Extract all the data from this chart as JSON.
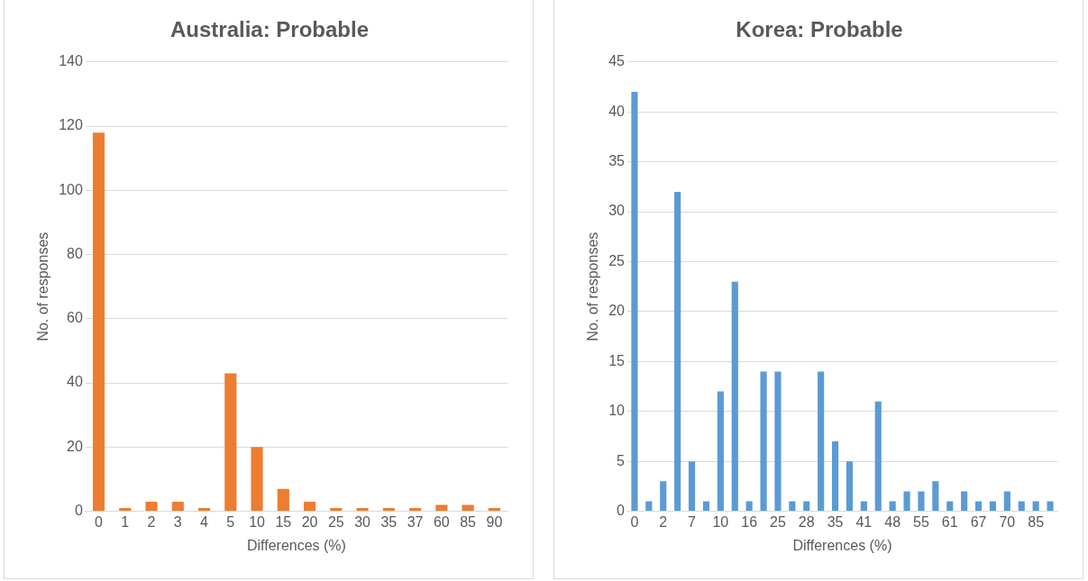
{
  "chart_data": [
    {
      "type": "bar",
      "title": "Australia: Probable",
      "xlabel": "Differences (%)",
      "ylabel": "No. of responses",
      "categories": [
        "0",
        "1",
        "2",
        "3",
        "4",
        "5",
        "10",
        "15",
        "20",
        "25",
        "30",
        "35",
        "37",
        "60",
        "85",
        "90"
      ],
      "values": [
        118,
        1,
        3,
        3,
        1,
        43,
        20,
        7,
        3,
        1,
        1,
        1,
        1,
        2,
        2,
        1
      ],
      "color": "#ed7d31",
      "ylim": [
        0,
        140
      ],
      "yticks": [
        0,
        20,
        40,
        60,
        80,
        100,
        120,
        140
      ],
      "grid": "y",
      "legend": false
    },
    {
      "type": "bar",
      "title": "Korea: Probable",
      "xlabel": "Differences (%)",
      "ylabel": "No. of responses",
      "categories": [
        "0",
        null,
        "2",
        null,
        "7",
        null,
        "10",
        null,
        "16",
        null,
        "25",
        null,
        "28",
        null,
        "35",
        null,
        "41",
        null,
        "48",
        null,
        "55",
        null,
        "61",
        null,
        "67",
        null,
        "70",
        null,
        "85",
        null
      ],
      "values": [
        42,
        1,
        3,
        32,
        5,
        1,
        12,
        23,
        1,
        14,
        14,
        1,
        1,
        14,
        7,
        5,
        1,
        11,
        1,
        2,
        2,
        3,
        1,
        2,
        1,
        1,
        2,
        1,
        1,
        1
      ],
      "color": "#5b9bd5",
      "ylim": [
        0,
        45
      ],
      "yticks": [
        0,
        5,
        10,
        15,
        20,
        25,
        30,
        35,
        40,
        45
      ],
      "grid": "y",
      "legend": false
    }
  ]
}
